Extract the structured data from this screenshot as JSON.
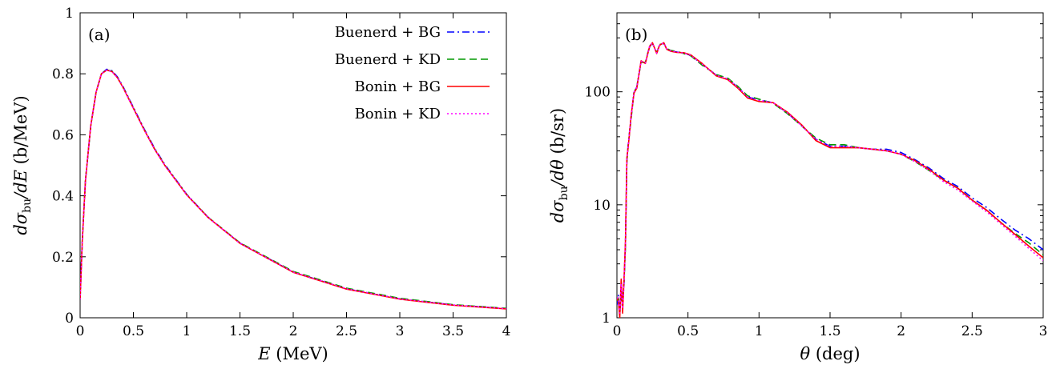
{
  "chart_data": [
    {
      "panel_label": "(a)",
      "type": "line",
      "xlabel_var": "E",
      "xlabel_unit": "(MeV)",
      "ylabel_d": "d",
      "ylabel_sigma": "σ",
      "ylabel_sub": "bu",
      "ylabel_den": "/dE",
      "ylabel_unit": "(b/MeV)",
      "xlim": [
        0,
        4
      ],
      "ylim": [
        0,
        1
      ],
      "yscale": "linear",
      "xticks": [
        "0",
        "0.5",
        "1",
        "1.5",
        "2",
        "2.5",
        "3",
        "3.5",
        "4"
      ],
      "xtick_values": [
        0,
        0.5,
        1,
        1.5,
        2,
        2.5,
        3,
        3.5,
        4
      ],
      "yticks": [
        "0",
        "0.2",
        "0.4",
        "0.6",
        "0.8",
        "1"
      ],
      "ytick_values": [
        0,
        0.2,
        0.4,
        0.6,
        0.8,
        1
      ],
      "legend_position": "top-right",
      "series": [
        {
          "name": "Buenerd + BG",
          "color": "#0000ff",
          "dash": "dash-dot",
          "x": [
            0,
            0.02,
            0.05,
            0.1,
            0.15,
            0.2,
            0.25,
            0.3,
            0.35,
            0.4,
            0.5,
            0.6,
            0.7,
            0.8,
            1.0,
            1.2,
            1.5,
            2.0,
            2.5,
            3.0,
            3.5,
            4.0
          ],
          "y": [
            0.06,
            0.25,
            0.45,
            0.63,
            0.74,
            0.8,
            0.815,
            0.81,
            0.79,
            0.76,
            0.69,
            0.62,
            0.555,
            0.5,
            0.405,
            0.33,
            0.245,
            0.15,
            0.095,
            0.062,
            0.042,
            0.03
          ]
        },
        {
          "name": "Buenerd + KD",
          "color": "#009900",
          "dash": "dashed",
          "x": [
            0,
            0.02,
            0.05,
            0.1,
            0.15,
            0.2,
            0.25,
            0.3,
            0.35,
            0.4,
            0.5,
            0.6,
            0.7,
            0.8,
            1.0,
            1.2,
            1.5,
            2.0,
            2.5,
            3.0,
            3.5,
            4.0
          ],
          "y": [
            0.06,
            0.25,
            0.45,
            0.63,
            0.74,
            0.8,
            0.813,
            0.808,
            0.788,
            0.758,
            0.688,
            0.618,
            0.553,
            0.498,
            0.404,
            0.33,
            0.246,
            0.152,
            0.097,
            0.064,
            0.043,
            0.031
          ]
        },
        {
          "name": "Bonin + BG",
          "color": "#ff0000",
          "dash": "solid",
          "x": [
            0,
            0.02,
            0.05,
            0.1,
            0.15,
            0.2,
            0.25,
            0.3,
            0.35,
            0.4,
            0.5,
            0.6,
            0.7,
            0.8,
            1.0,
            1.2,
            1.5,
            2.0,
            2.5,
            3.0,
            3.5,
            4.0
          ],
          "y": [
            0.06,
            0.25,
            0.45,
            0.63,
            0.74,
            0.8,
            0.812,
            0.807,
            0.787,
            0.757,
            0.687,
            0.617,
            0.552,
            0.497,
            0.403,
            0.329,
            0.244,
            0.149,
            0.094,
            0.061,
            0.041,
            0.029
          ]
        },
        {
          "name": "Bonin + KD",
          "color": "#ff00ff",
          "dash": "dotted",
          "x": [
            0,
            0.02,
            0.05,
            0.1,
            0.15,
            0.2,
            0.25,
            0.3,
            0.35,
            0.4,
            0.5,
            0.6,
            0.7,
            0.8,
            1.0,
            1.2,
            1.5,
            2.0,
            2.5,
            3.0,
            3.5,
            4.0
          ],
          "y": [
            0.06,
            0.25,
            0.45,
            0.63,
            0.74,
            0.8,
            0.812,
            0.807,
            0.787,
            0.757,
            0.687,
            0.617,
            0.552,
            0.497,
            0.403,
            0.329,
            0.244,
            0.15,
            0.095,
            0.062,
            0.042,
            0.03
          ]
        }
      ]
    },
    {
      "panel_label": "(b)",
      "type": "line",
      "xlabel_var": "θ",
      "xlabel_unit": "(deg)",
      "ylabel_d": "d",
      "ylabel_sigma": "σ",
      "ylabel_sub": "bu",
      "ylabel_den": "/dθ",
      "ylabel_unit": "(b/sr)",
      "xlim": [
        0,
        3
      ],
      "ylim": [
        1,
        500
      ],
      "yscale": "log",
      "xticks": [
        "0",
        "0.5",
        "1",
        "1.5",
        "2",
        "2.5",
        "3"
      ],
      "xtick_values": [
        0,
        0.5,
        1,
        1.5,
        2,
        2.5,
        3
      ],
      "yticks": [
        "1",
        "10",
        "100"
      ],
      "ytick_values": [
        1,
        10,
        100
      ],
      "series": [
        {
          "name": "Buenerd + BG",
          "color": "#0000ff",
          "dash": "dash-dot",
          "x": [
            0,
            0.01,
            0.02,
            0.03,
            0.04,
            0.05,
            0.06,
            0.07,
            0.08,
            0.1,
            0.12,
            0.14,
            0.17,
            0.2,
            0.23,
            0.25,
            0.28,
            0.3,
            0.33,
            0.35,
            0.38,
            0.42,
            0.47,
            0.52,
            0.6,
            0.7,
            0.78,
            0.85,
            0.92,
            1.0,
            1.1,
            1.2,
            1.3,
            1.4,
            1.5,
            1.6,
            1.7,
            1.8,
            1.9,
            2.0,
            2.1,
            2.2,
            2.3,
            2.4,
            2.5,
            2.6,
            2.7,
            2.8,
            2.9,
            3.0
          ],
          "y": [
            1.3,
            1.6,
            1.1,
            1.6,
            1.3,
            2.0,
            4.5,
            25,
            35,
            60,
            100,
            110,
            185,
            180,
            250,
            270,
            220,
            260,
            270,
            240,
            230,
            225,
            220,
            210,
            175,
            140,
            130,
            110,
            90,
            85,
            80,
            65,
            50,
            38,
            33,
            33,
            32,
            31,
            31,
            29,
            25,
            21,
            17,
            14.5,
            11.5,
            9.5,
            7.5,
            6.0,
            5.0,
            4.0
          ]
        },
        {
          "name": "Buenerd + KD",
          "color": "#009900",
          "dash": "dashed",
          "x": [
            0,
            0.01,
            0.02,
            0.03,
            0.04,
            0.05,
            0.06,
            0.07,
            0.08,
            0.1,
            0.12,
            0.14,
            0.17,
            0.2,
            0.23,
            0.25,
            0.28,
            0.3,
            0.33,
            0.35,
            0.38,
            0.42,
            0.47,
            0.52,
            0.6,
            0.7,
            0.78,
            0.85,
            0.92,
            1.0,
            1.1,
            1.2,
            1.3,
            1.4,
            1.5,
            1.6,
            1.7,
            1.8,
            1.9,
            2.0,
            2.1,
            2.2,
            2.3,
            2.4,
            2.5,
            2.6,
            2.7,
            2.8,
            2.9,
            3.0
          ],
          "y": [
            1.4,
            1.5,
            1.2,
            1.5,
            1.4,
            2.1,
            4.3,
            24,
            34,
            58,
            98,
            112,
            182,
            182,
            255,
            268,
            222,
            262,
            268,
            242,
            232,
            228,
            218,
            208,
            172,
            142,
            132,
            112,
            92,
            86,
            79,
            64,
            50,
            39,
            34,
            34,
            32,
            31,
            30,
            28,
            24,
            20,
            16.5,
            14,
            11,
            9.0,
            7.0,
            5.6,
            4.6,
            3.6
          ]
        },
        {
          "name": "Bonin + BG",
          "color": "#ff0000",
          "dash": "solid",
          "x": [
            0,
            0.01,
            0.02,
            0.03,
            0.04,
            0.05,
            0.06,
            0.07,
            0.08,
            0.1,
            0.12,
            0.14,
            0.17,
            0.2,
            0.23,
            0.25,
            0.28,
            0.3,
            0.33,
            0.35,
            0.38,
            0.42,
            0.47,
            0.52,
            0.6,
            0.7,
            0.78,
            0.85,
            0.92,
            1.0,
            1.1,
            1.2,
            1.3,
            1.4,
            1.5,
            1.6,
            1.7,
            1.8,
            1.9,
            2.0,
            2.1,
            2.2,
            2.3,
            2.4,
            2.5,
            2.6,
            2.7,
            2.8,
            2.9,
            3.0
          ],
          "y": [
            1.5,
            1.4,
            1.0,
            2.2,
            1.1,
            2.2,
            4.8,
            26,
            33,
            62,
            97,
            108,
            188,
            178,
            252,
            272,
            218,
            258,
            272,
            238,
            228,
            223,
            222,
            212,
            178,
            138,
            128,
            108,
            88,
            82,
            80,
            66,
            51,
            37,
            32,
            32,
            32,
            31,
            30,
            28,
            24.5,
            20.5,
            16.5,
            14,
            11,
            9.0,
            7.0,
            5.5,
            4.3,
            3.4
          ]
        },
        {
          "name": "Bonin + KD",
          "color": "#ff00ff",
          "dash": "dotted",
          "x": [
            0,
            0.01,
            0.02,
            0.03,
            0.04,
            0.05,
            0.06,
            0.07,
            0.08,
            0.1,
            0.12,
            0.14,
            0.17,
            0.2,
            0.23,
            0.25,
            0.28,
            0.3,
            0.33,
            0.35,
            0.38,
            0.42,
            0.47,
            0.52,
            0.6,
            0.7,
            0.78,
            0.85,
            0.92,
            1.0,
            1.1,
            1.2,
            1.3,
            1.4,
            1.5,
            1.6,
            1.7,
            1.8,
            1.9,
            2.0,
            2.1,
            2.2,
            2.3,
            2.4,
            2.5,
            2.6,
            2.7,
            2.8,
            2.9,
            3.0
          ],
          "y": [
            1.5,
            1.5,
            1.1,
            2.0,
            1.2,
            2.1,
            4.6,
            25,
            34,
            60,
            99,
            110,
            186,
            180,
            254,
            270,
            220,
            260,
            270,
            240,
            230,
            225,
            220,
            210,
            176,
            140,
            130,
            110,
            90,
            84,
            80,
            65,
            50,
            38,
            33,
            33,
            32,
            31,
            30,
            28,
            24,
            20,
            16,
            13.5,
            10.8,
            8.7,
            6.8,
            5.3,
            4.1,
            3.2
          ]
        }
      ]
    }
  ]
}
